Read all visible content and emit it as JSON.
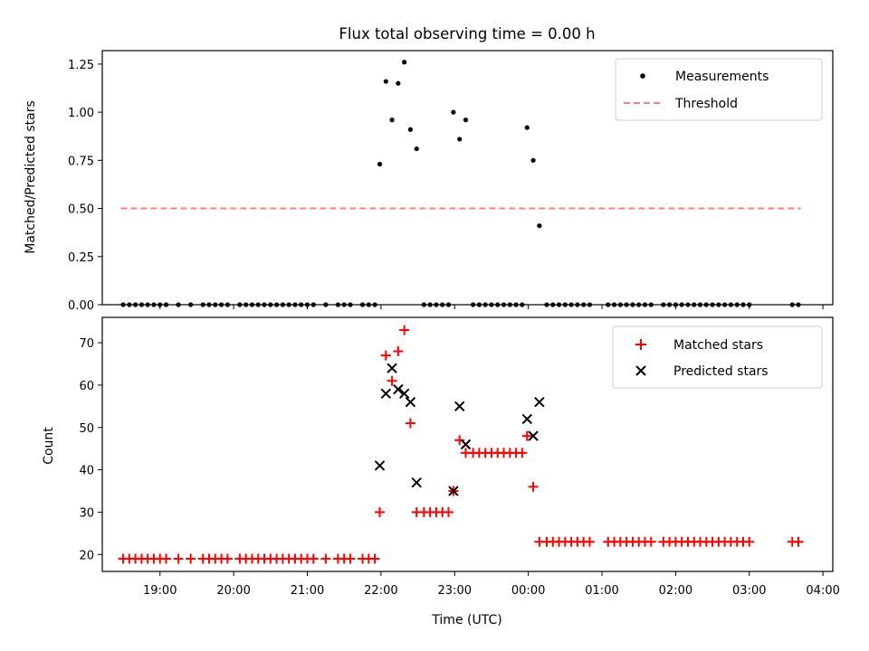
{
  "chart_data": [
    {
      "type": "scatter",
      "title": "Flux total observing time = 0.00 h",
      "xlabel": "",
      "ylabel": "Matched/Predicted stars",
      "xlim": [
        "18:13",
        "04:08"
      ],
      "ylim": [
        0,
        1.32
      ],
      "yticks": [
        "0.00",
        "0.25",
        "0.50",
        "0.75",
        "1.00",
        "1.25"
      ],
      "legend": {
        "position": "top-right",
        "entries": [
          "Measurements",
          "Threshold"
        ]
      },
      "series": [
        {
          "name": "Measurements",
          "color": "#000000",
          "marker": "dot",
          "points": [
            [
              "18:30",
              0
            ],
            [
              "18:35",
              0
            ],
            [
              "18:40",
              0
            ],
            [
              "18:45",
              0
            ],
            [
              "18:50",
              0
            ],
            [
              "18:55",
              0
            ],
            [
              "19:00",
              0
            ],
            [
              "19:05",
              0
            ],
            [
              "19:15",
              0
            ],
            [
              "19:25",
              0
            ],
            [
              "19:35",
              0
            ],
            [
              "19:40",
              0
            ],
            [
              "19:45",
              0
            ],
            [
              "19:50",
              0
            ],
            [
              "19:55",
              0
            ],
            [
              "20:05",
              0
            ],
            [
              "20:10",
              0
            ],
            [
              "20:15",
              0
            ],
            [
              "20:20",
              0
            ],
            [
              "20:25",
              0
            ],
            [
              "20:30",
              0
            ],
            [
              "20:35",
              0
            ],
            [
              "20:40",
              0
            ],
            [
              "20:45",
              0
            ],
            [
              "20:50",
              0
            ],
            [
              "20:55",
              0
            ],
            [
              "21:00",
              0
            ],
            [
              "21:05",
              0
            ],
            [
              "21:15",
              0
            ],
            [
              "21:25",
              0
            ],
            [
              "21:30",
              0
            ],
            [
              "21:35",
              0
            ],
            [
              "21:45",
              0
            ],
            [
              "21:50",
              0
            ],
            [
              "21:55",
              0
            ],
            [
              "21:59",
              0.73
            ],
            [
              "22:04",
              1.16
            ],
            [
              "22:09",
              0.96
            ],
            [
              "22:14",
              1.15
            ],
            [
              "22:19",
              1.26
            ],
            [
              "22:24",
              0.91
            ],
            [
              "22:29",
              0.81
            ],
            [
              "22:35",
              0
            ],
            [
              "22:40",
              0
            ],
            [
              "22:45",
              0
            ],
            [
              "22:50",
              0
            ],
            [
              "22:55",
              0
            ],
            [
              "22:59",
              1.0
            ],
            [
              "23:04",
              0.86
            ],
            [
              "23:09",
              0.96
            ],
            [
              "23:15",
              0
            ],
            [
              "23:20",
              0
            ],
            [
              "23:25",
              0
            ],
            [
              "23:30",
              0
            ],
            [
              "23:35",
              0
            ],
            [
              "23:40",
              0
            ],
            [
              "23:45",
              0
            ],
            [
              "23:50",
              0
            ],
            [
              "23:55",
              0
            ],
            [
              "23:59",
              0.92
            ],
            [
              "00:04",
              0.75
            ],
            [
              "00:09",
              0.41
            ],
            [
              "00:15",
              0
            ],
            [
              "00:20",
              0
            ],
            [
              "00:25",
              0
            ],
            [
              "00:30",
              0
            ],
            [
              "00:35",
              0
            ],
            [
              "00:40",
              0
            ],
            [
              "00:45",
              0
            ],
            [
              "00:50",
              0
            ],
            [
              "01:05",
              0
            ],
            [
              "01:10",
              0
            ],
            [
              "01:15",
              0
            ],
            [
              "01:20",
              0
            ],
            [
              "01:25",
              0
            ],
            [
              "01:30",
              0
            ],
            [
              "01:35",
              0
            ],
            [
              "01:40",
              0
            ],
            [
              "01:50",
              0
            ],
            [
              "01:55",
              0
            ],
            [
              "02:00",
              0
            ],
            [
              "02:05",
              0
            ],
            [
              "02:10",
              0
            ],
            [
              "02:15",
              0
            ],
            [
              "02:20",
              0
            ],
            [
              "02:25",
              0
            ],
            [
              "02:30",
              0
            ],
            [
              "02:35",
              0
            ],
            [
              "02:40",
              0
            ],
            [
              "02:45",
              0
            ],
            [
              "02:50",
              0
            ],
            [
              "02:55",
              0
            ],
            [
              "03:00",
              0
            ],
            [
              "03:35",
              0
            ],
            [
              "03:40",
              0
            ]
          ]
        },
        {
          "name": "Threshold",
          "color": "#ff7f7f",
          "style": "dashed",
          "points": [
            [
              "18:28",
              0.5
            ],
            [
              "03:42",
              0.5
            ]
          ]
        }
      ]
    },
    {
      "type": "scatter",
      "title": "",
      "xlabel": "Time (UTC)",
      "ylabel": "Count",
      "xlim": [
        "18:13",
        "04:08"
      ],
      "ylim": [
        16,
        76
      ],
      "yticks": [
        "20",
        "30",
        "40",
        "50",
        "60",
        "70"
      ],
      "xticks": [
        "19:00",
        "20:00",
        "21:00",
        "22:00",
        "23:00",
        "00:00",
        "01:00",
        "02:00",
        "03:00",
        "04:00"
      ],
      "legend": {
        "position": "top-right",
        "entries": [
          "Matched stars",
          "Predicted stars"
        ]
      },
      "series": [
        {
          "name": "Matched stars",
          "color": "#ff0000",
          "marker": "plus",
          "points": [
            [
              "18:30",
              19
            ],
            [
              "18:35",
              19
            ],
            [
              "18:40",
              19
            ],
            [
              "18:45",
              19
            ],
            [
              "18:50",
              19
            ],
            [
              "18:55",
              19
            ],
            [
              "19:00",
              19
            ],
            [
              "19:05",
              19
            ],
            [
              "19:15",
              19
            ],
            [
              "19:25",
              19
            ],
            [
              "19:35",
              19
            ],
            [
              "19:40",
              19
            ],
            [
              "19:45",
              19
            ],
            [
              "19:50",
              19
            ],
            [
              "19:55",
              19
            ],
            [
              "20:05",
              19
            ],
            [
              "20:10",
              19
            ],
            [
              "20:15",
              19
            ],
            [
              "20:20",
              19
            ],
            [
              "20:25",
              19
            ],
            [
              "20:30",
              19
            ],
            [
              "20:35",
              19
            ],
            [
              "20:40",
              19
            ],
            [
              "20:45",
              19
            ],
            [
              "20:50",
              19
            ],
            [
              "20:55",
              19
            ],
            [
              "21:00",
              19
            ],
            [
              "21:05",
              19
            ],
            [
              "21:15",
              19
            ],
            [
              "21:25",
              19
            ],
            [
              "21:30",
              19
            ],
            [
              "21:35",
              19
            ],
            [
              "21:45",
              19
            ],
            [
              "21:50",
              19
            ],
            [
              "21:55",
              19
            ],
            [
              "21:59",
              30
            ],
            [
              "22:04",
              67
            ],
            [
              "22:09",
              61
            ],
            [
              "22:14",
              68
            ],
            [
              "22:19",
              73
            ],
            [
              "22:24",
              51
            ],
            [
              "22:29",
              30
            ],
            [
              "22:35",
              30
            ],
            [
              "22:40",
              30
            ],
            [
              "22:45",
              30
            ],
            [
              "22:50",
              30
            ],
            [
              "22:55",
              30
            ],
            [
              "22:59",
              35
            ],
            [
              "23:04",
              47
            ],
            [
              "23:09",
              44
            ],
            [
              "23:15",
              44
            ],
            [
              "23:20",
              44
            ],
            [
              "23:25",
              44
            ],
            [
              "23:30",
              44
            ],
            [
              "23:35",
              44
            ],
            [
              "23:40",
              44
            ],
            [
              "23:45",
              44
            ],
            [
              "23:50",
              44
            ],
            [
              "23:55",
              44
            ],
            [
              "23:59",
              48
            ],
            [
              "00:04",
              36
            ],
            [
              "00:09",
              23
            ],
            [
              "00:15",
              23
            ],
            [
              "00:20",
              23
            ],
            [
              "00:25",
              23
            ],
            [
              "00:30",
              23
            ],
            [
              "00:35",
              23
            ],
            [
              "00:40",
              23
            ],
            [
              "00:45",
              23
            ],
            [
              "00:50",
              23
            ],
            [
              "01:05",
              23
            ],
            [
              "01:10",
              23
            ],
            [
              "01:15",
              23
            ],
            [
              "01:20",
              23
            ],
            [
              "01:25",
              23
            ],
            [
              "01:30",
              23
            ],
            [
              "01:35",
              23
            ],
            [
              "01:40",
              23
            ],
            [
              "01:50",
              23
            ],
            [
              "01:55",
              23
            ],
            [
              "02:00",
              23
            ],
            [
              "02:05",
              23
            ],
            [
              "02:10",
              23
            ],
            [
              "02:15",
              23
            ],
            [
              "02:20",
              23
            ],
            [
              "02:25",
              23
            ],
            [
              "02:30",
              23
            ],
            [
              "02:35",
              23
            ],
            [
              "02:40",
              23
            ],
            [
              "02:45",
              23
            ],
            [
              "02:50",
              23
            ],
            [
              "02:55",
              23
            ],
            [
              "03:00",
              23
            ],
            [
              "03:35",
              23
            ],
            [
              "03:40",
              23
            ]
          ]
        },
        {
          "name": "Predicted stars",
          "color": "#000000",
          "marker": "x",
          "points": [
            [
              "21:59",
              41
            ],
            [
              "22:04",
              58
            ],
            [
              "22:09",
              64
            ],
            [
              "22:14",
              59
            ],
            [
              "22:19",
              58
            ],
            [
              "22:24",
              56
            ],
            [
              "22:29",
              37
            ],
            [
              "22:59",
              35
            ],
            [
              "23:04",
              55
            ],
            [
              "23:09",
              46
            ],
            [
              "23:59",
              52
            ],
            [
              "00:04",
              48
            ],
            [
              "00:09",
              56
            ]
          ]
        }
      ]
    }
  ]
}
